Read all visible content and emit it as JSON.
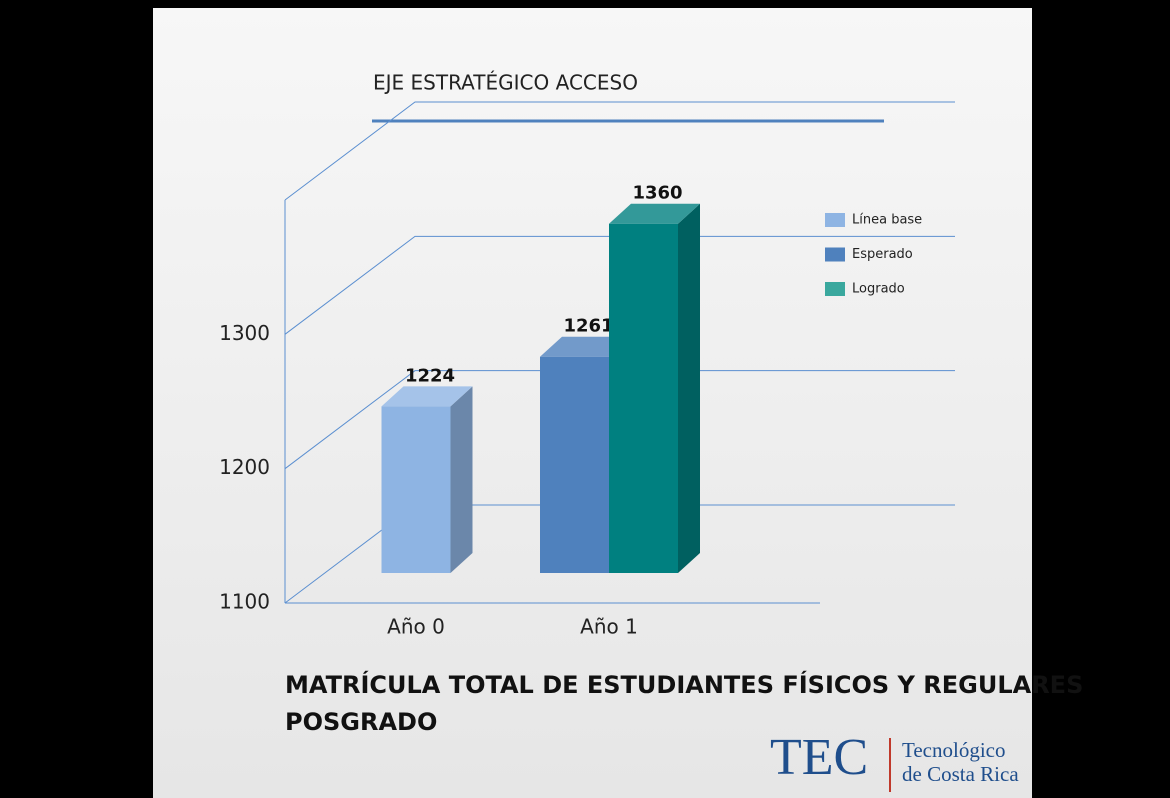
{
  "chart_data": {
    "type": "bar3d",
    "subtitle": "EJE ESTRATÉGICO ACCESO",
    "title": [
      "MATRÍCULA TOTAL DE ESTUDIANTES FÍSICOS Y REGULARES",
      "POSGRADO"
    ],
    "categories": [
      "Año 0",
      "Año 1"
    ],
    "series": [
      {
        "name": "Línea base",
        "color": "#8eb4e3",
        "values": [
          1224,
          null
        ]
      },
      {
        "name": "Esperado",
        "color": "#4f81bd",
        "values": [
          null,
          1261
        ]
      },
      {
        "name": "Logrado",
        "color": "#008080",
        "legend_color": "#3aa89e",
        "values": [
          null,
          1360
        ]
      }
    ],
    "ylim": [
      1100,
      1400
    ],
    "yticks": [
      1100,
      1200,
      1300
    ],
    "grid": true,
    "legend": "right"
  },
  "logo": {
    "mark": "TEC",
    "name": [
      "Tecnológico",
      "de Costa Rica"
    ]
  }
}
